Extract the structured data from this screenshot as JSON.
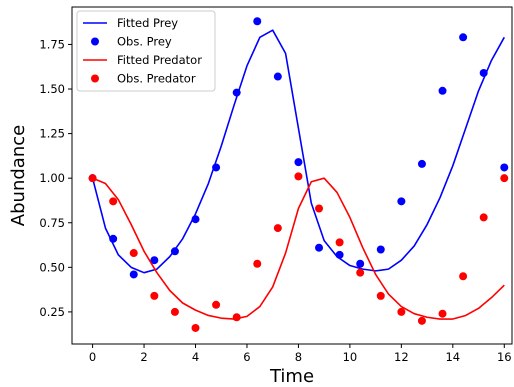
{
  "chart_data": {
    "type": "line",
    "xlabel": "Time",
    "ylabel": "Abundance",
    "xlim": [
      -0.8,
      16.3
    ],
    "ylim": [
      0.07,
      1.96
    ],
    "xticks": [
      0,
      2,
      4,
      6,
      8,
      10,
      12,
      14,
      16
    ],
    "yticks": [
      0.25,
      0.5,
      0.75,
      1.0,
      1.25,
      1.5,
      1.75
    ],
    "xtick_labels": [
      "0",
      "2",
      "4",
      "6",
      "8",
      "10",
      "12",
      "14",
      "16"
    ],
    "ytick_labels": [
      "0.25",
      "0.50",
      "0.75",
      "1.00",
      "1.25",
      "1.50",
      "1.75"
    ],
    "grid": false,
    "legend_position": "top-left",
    "series": [
      {
        "name": "Fitted Prey",
        "kind": "line",
        "color": "#0000ff",
        "x": [
          0,
          0.5,
          1.0,
          1.5,
          2.0,
          2.5,
          3.0,
          3.5,
          4.0,
          4.5,
          5.0,
          5.5,
          6.0,
          6.5,
          7.0,
          7.5,
          8.0,
          8.5,
          9.0,
          9.5,
          10.0,
          10.5,
          11.0,
          11.5,
          12.0,
          12.5,
          13.0,
          13.5,
          14.0,
          14.5,
          15.0,
          15.5,
          16.0
        ],
        "y": [
          1.0,
          0.72,
          0.57,
          0.5,
          0.47,
          0.49,
          0.56,
          0.66,
          0.8,
          0.97,
          1.18,
          1.41,
          1.63,
          1.79,
          1.83,
          1.7,
          1.28,
          0.86,
          0.65,
          0.56,
          0.51,
          0.49,
          0.48,
          0.49,
          0.54,
          0.62,
          0.74,
          0.89,
          1.07,
          1.28,
          1.49,
          1.66,
          1.79
        ]
      },
      {
        "name": "Obs. Prey",
        "kind": "scatter",
        "color": "#0000ff",
        "x": [
          0,
          0.8,
          1.6,
          2.4,
          3.2,
          4.0,
          4.8,
          5.6,
          6.4,
          7.2,
          8.0,
          8.8,
          9.6,
          10.4,
          11.2,
          12.0,
          12.8,
          13.6,
          14.4,
          15.2,
          16.0
        ],
        "y": [
          1.0,
          0.66,
          0.46,
          0.54,
          0.59,
          0.77,
          1.06,
          1.48,
          1.88,
          1.57,
          1.09,
          0.61,
          0.57,
          0.52,
          0.6,
          0.87,
          1.08,
          1.49,
          1.79,
          1.59,
          1.06
        ]
      },
      {
        "name": "Fitted Predator",
        "kind": "line",
        "color": "#ff0000",
        "x": [
          0,
          0.5,
          1.0,
          1.5,
          2.0,
          2.5,
          3.0,
          3.5,
          4.0,
          4.5,
          5.0,
          5.5,
          6.0,
          6.5,
          7.0,
          7.5,
          8.0,
          8.5,
          9.0,
          9.5,
          10.0,
          10.5,
          11.0,
          11.5,
          12.0,
          12.5,
          13.0,
          13.5,
          14.0,
          14.5,
          15.0,
          15.5,
          16.0
        ],
        "y": [
          1.0,
          0.97,
          0.88,
          0.74,
          0.59,
          0.47,
          0.37,
          0.3,
          0.26,
          0.23,
          0.215,
          0.21,
          0.225,
          0.28,
          0.39,
          0.58,
          0.83,
          0.98,
          1.0,
          0.92,
          0.78,
          0.61,
          0.46,
          0.35,
          0.28,
          0.24,
          0.22,
          0.21,
          0.21,
          0.23,
          0.27,
          0.33,
          0.4
        ]
      },
      {
        "name": "Obs. Predator",
        "kind": "scatter",
        "color": "#ff0000",
        "x": [
          0,
          0.8,
          1.6,
          2.4,
          3.2,
          4.0,
          4.8,
          5.6,
          6.4,
          7.2,
          8.0,
          8.8,
          9.6,
          10.4,
          11.2,
          12.0,
          12.8,
          13.6,
          14.4,
          15.2,
          16.0
        ],
        "y": [
          1.0,
          0.87,
          0.58,
          0.34,
          0.25,
          0.16,
          0.29,
          0.22,
          0.52,
          0.72,
          1.01,
          0.83,
          0.64,
          0.47,
          0.34,
          0.25,
          0.2,
          0.24,
          0.45,
          0.78,
          1.0
        ]
      }
    ]
  }
}
